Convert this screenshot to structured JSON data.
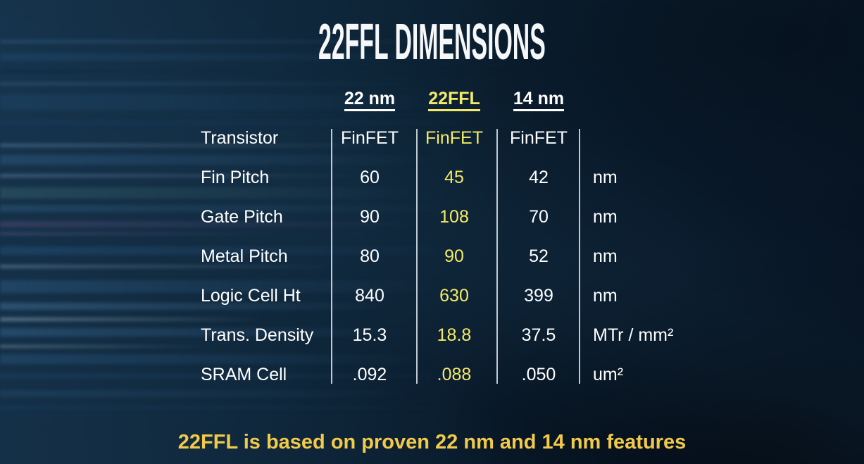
{
  "slide": {
    "title": "22FFL DIMENSIONS",
    "footer": "22FFL is based on proven 22 nm and 14 nm features"
  },
  "table": {
    "columns": [
      {
        "label": "22 nm",
        "highlight": false
      },
      {
        "label": "22FFL",
        "highlight": true
      },
      {
        "label": "14 nm",
        "highlight": false
      }
    ],
    "rows": [
      {
        "label": "Transistor",
        "c22": "FinFET",
        "cffl": "FinFET",
        "c14": "FinFET",
        "unit": ""
      },
      {
        "label": "Fin Pitch",
        "c22": "60",
        "cffl": "45",
        "c14": "42",
        "unit": "nm"
      },
      {
        "label": "Gate Pitch",
        "c22": "90",
        "cffl": "108",
        "c14": "70",
        "unit": "nm"
      },
      {
        "label": "Metal Pitch",
        "c22": "80",
        "cffl": "90",
        "c14": "52",
        "unit": "nm"
      },
      {
        "label": "Logic Cell Ht",
        "c22": "840",
        "cffl": "630",
        "c14": "399",
        "unit": "nm"
      },
      {
        "label": "Trans. Density",
        "c22": "15.3",
        "cffl": "18.8",
        "c14": "37.5",
        "unit": "MTr / mm²"
      },
      {
        "label": "SRAM Cell",
        "c22": ".092",
        "cffl": ".088",
        "c14": ".050",
        "unit": "um²"
      }
    ]
  },
  "colors": {
    "accent_yellow": "#f5ea68",
    "footer_gold": "#f2ca4a",
    "text_white": "#ffffff",
    "divider_line": "#dfe7ef",
    "background_navy": "#0b2031"
  },
  "chart_data": {
    "type": "table",
    "title": "22FFL DIMENSIONS",
    "columns": [
      "",
      "22 nm",
      "22FFL",
      "14 nm",
      "unit"
    ],
    "rows": [
      [
        "Transistor",
        "FinFET",
        "FinFET",
        "FinFET",
        ""
      ],
      [
        "Fin Pitch",
        60,
        45,
        42,
        "nm"
      ],
      [
        "Gate Pitch",
        90,
        108,
        70,
        "nm"
      ],
      [
        "Metal Pitch",
        80,
        90,
        52,
        "nm"
      ],
      [
        "Logic Cell Ht",
        840,
        630,
        399,
        "nm"
      ],
      [
        "Trans. Density",
        15.3,
        18.8,
        37.5,
        "MTr / mm²"
      ],
      [
        "SRAM Cell",
        0.092,
        0.088,
        0.05,
        "um²"
      ]
    ],
    "highlight_column": "22FFL",
    "caption": "22FFL is based on proven 22 nm and 14 nm features"
  }
}
